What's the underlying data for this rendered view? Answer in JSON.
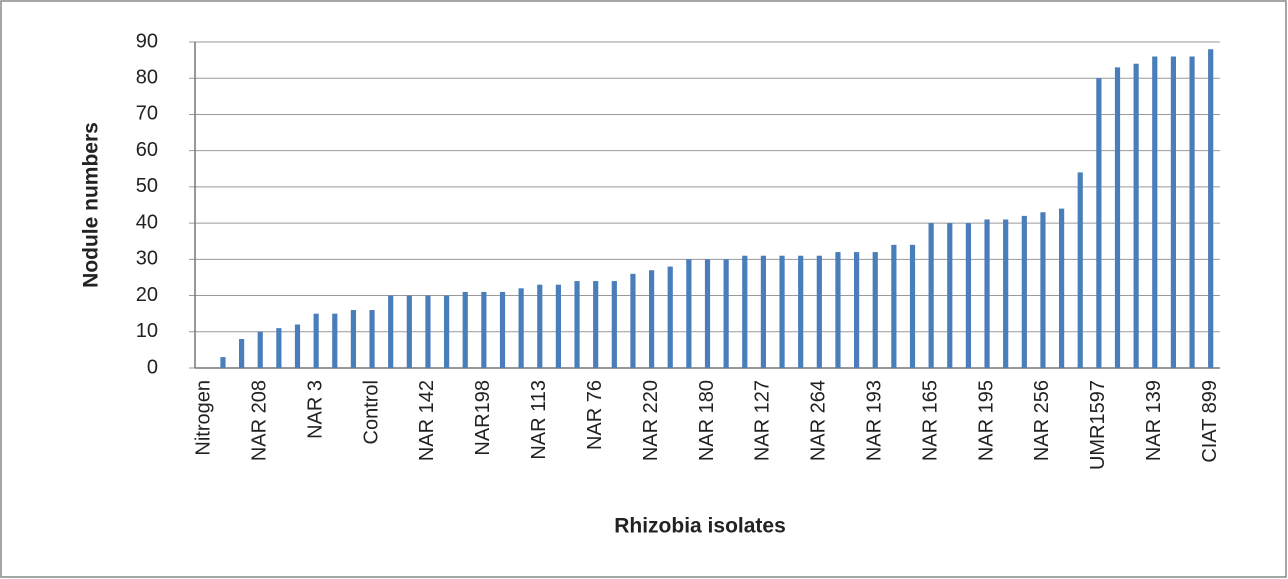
{
  "chart_data": {
    "type": "bar",
    "y_label": "Nodule numbers",
    "x_label": "Rhizobia isolates",
    "categories": [
      "Nitrogen",
      null,
      null,
      "NAR 208",
      null,
      null,
      "NAR 3",
      null,
      null,
      "Control",
      null,
      null,
      "NAR 142",
      null,
      null,
      "NAR198",
      null,
      null,
      "NAR 113",
      null,
      null,
      "NAR 76",
      null,
      null,
      "NAR 220",
      null,
      null,
      "NAR 180",
      null,
      null,
      "NAR 127",
      null,
      null,
      "NAR 264",
      null,
      null,
      "NAR 193",
      null,
      null,
      "NAR 165",
      null,
      null,
      "NAR 195",
      null,
      null,
      "NAR 256",
      null,
      null,
      "UMR1597",
      null,
      null,
      "NAR 139",
      null,
      null,
      "CIAT 899"
    ],
    "values": [
      0,
      3,
      8,
      10,
      11,
      12,
      15,
      15,
      16,
      16,
      20,
      20,
      20,
      20,
      21,
      21,
      21,
      22,
      23,
      23,
      24,
      24,
      24,
      26,
      27,
      28,
      30,
      30,
      30,
      31,
      31,
      31,
      31,
      31,
      32,
      32,
      32,
      34,
      34,
      40,
      40,
      40,
      41,
      41,
      42,
      43,
      44,
      54,
      80,
      83,
      84,
      86,
      86,
      86,
      88
    ],
    "color": "#4a7ebb",
    "ylim": [
      0,
      90
    ],
    "yticks": [
      0,
      10,
      20,
      30,
      40,
      50,
      60,
      70,
      80,
      90
    ],
    "grid": true
  }
}
